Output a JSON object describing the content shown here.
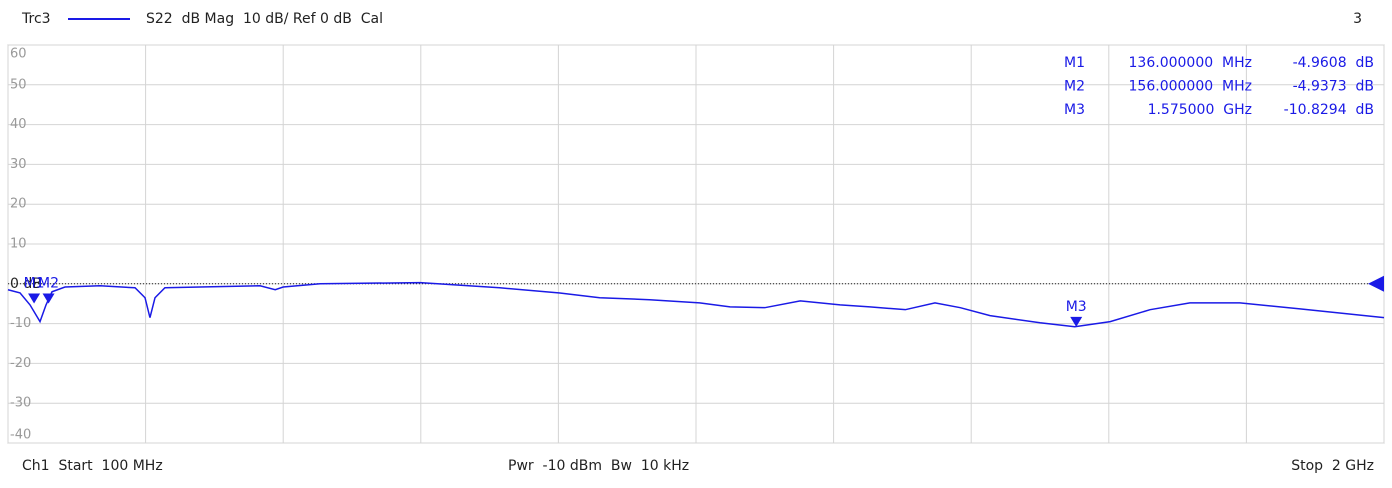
{
  "chart_data": {
    "type": "line",
    "title": "S22  dB Mag  10 dB/ Ref 0 dB  Cal",
    "corner_label": "3",
    "start_label": "Ch1  Start  100 MHz",
    "center_label": "Pwr  -10 dBm  Bw  10 kHz",
    "stop_label": "Stop  2 GHz",
    "x": [
      100,
      116.6,
      130.4,
      144.2,
      152.5,
      160.8,
      178.7,
      227,
      275.4,
      289.2,
      296,
      303,
      316.7,
      365,
      448,
      469,
      480,
      531,
      669,
      779,
      862,
      917,
      986,
      1055,
      1097,
      1145,
      1194,
      1249,
      1290,
      1339,
      1380,
      1415,
      1456,
      1525,
      1573,
      1622,
      1677,
      1732,
      1801,
      1884,
      2000
    ],
    "series": [
      {
        "name": "Trc3",
        "color": "#1a1ae6",
        "values": [
          -1.5,
          -2.3,
          -5.3,
          -9.5,
          -5.3,
          -2,
          -0.8,
          -0.5,
          -1,
          -3.5,
          -8.5,
          -3.5,
          -1,
          -0.8,
          -0.5,
          -1.5,
          -0.8,
          0,
          0.3,
          -1,
          -2.3,
          -3.5,
          -4,
          -4.8,
          -5.8,
          -6,
          -4.3,
          -5.3,
          -5.8,
          -6.5,
          -4.8,
          -6,
          -8,
          -9.8,
          -10.8,
          -9.5,
          -6.5,
          -4.8,
          -4.8,
          -6.3,
          -8.5
        ]
      }
    ],
    "xlim": [
      100,
      2000
    ],
    "xticks": [
      100,
      290,
      480,
      670,
      860,
      1050,
      1240,
      1430,
      1620,
      1810,
      2000
    ],
    "ylim": [
      -40,
      60
    ],
    "yticks": [
      60,
      50,
      40,
      30,
      20,
      10,
      {
        "value": 0,
        "label": "0 dB"
      },
      -10,
      -20,
      -30,
      -40
    ],
    "grid": true,
    "ref_level": 0,
    "markers": [
      {
        "name": "M1",
        "x": 136,
        "x_label": "136.000000  MHz",
        "value": -4.9608,
        "value_label": "-4.9608  dB"
      },
      {
        "name": "M2",
        "x": 156,
        "x_label": "156.000000  MHz",
        "value": -4.9373,
        "value_label": "-4.9373  dB"
      },
      {
        "name": "M3",
        "x": 1575,
        "x_label": "1.575000  GHz",
        "value": -10.8294,
        "value_label": "-10.8294  dB"
      }
    ]
  }
}
